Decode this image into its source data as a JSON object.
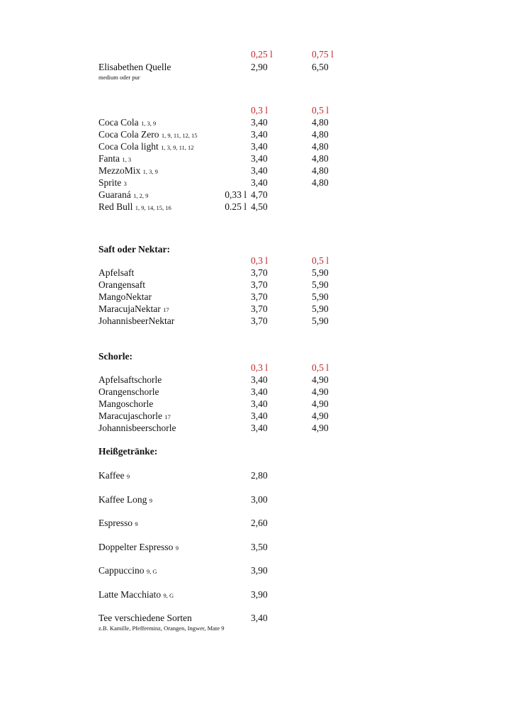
{
  "water": {
    "sizes": [
      "0,25 l",
      "0,75 l"
    ],
    "item": {
      "name": "Elisabethen Quelle",
      "note": "",
      "prices": [
        "2,90",
        "6,50"
      ],
      "subtitle": "medium oder pur"
    }
  },
  "soft_drinks": {
    "sizes": [
      "0,3 l",
      "0,5 l"
    ],
    "items": [
      {
        "name": "Coca Cola",
        "note": "1, 3, 9",
        "prices": [
          "3,40",
          "4,80"
        ]
      },
      {
        "name": "Coca Cola Zero",
        "note": "1, 9, 11, 12, 15",
        "prices": [
          "3,40",
          "4,80"
        ]
      },
      {
        "name": "Coca Cola light",
        "note": "1, 3, 9, 11, 12",
        "prices": [
          "3,40",
          "4,80"
        ]
      },
      {
        "name": "Fanta",
        "note": "1, 3",
        "prices": [
          "3,40",
          "4,80"
        ]
      },
      {
        "name": "MezzoMix",
        "note": "1, 3, 9",
        "prices": [
          "3,40",
          "4,80"
        ]
      },
      {
        "name": "Sprite",
        "note": "3",
        "prices": [
          "3,40",
          "4,80"
        ]
      },
      {
        "name": "Guaraná",
        "note": "1, 2, 9",
        "size": "0,33 l",
        "prices": [
          "4,70"
        ]
      },
      {
        "name": "Red Bull",
        "note": "1, 9, 14, 15, 16",
        "size": "0.25 l",
        "prices": [
          "4,50"
        ]
      }
    ]
  },
  "juice": {
    "title": "Saft oder Nektar:",
    "sizes": [
      "0,3 l",
      "0,5 l"
    ],
    "items": [
      {
        "name": "Apfelsaft",
        "note": "",
        "prices": [
          "3,70",
          "5,90"
        ]
      },
      {
        "name": "Orangensaft",
        "note": "",
        "prices": [
          "3,70",
          "5,90"
        ]
      },
      {
        "name": "MangoNektar",
        "note": "",
        "prices": [
          "3,70",
          "5,90"
        ]
      },
      {
        "name": "MaracujaNektar",
        "note": "17",
        "prices": [
          "3,70",
          "5,90"
        ]
      },
      {
        "name": "JohannisbeerNektar",
        "note": "",
        "prices": [
          "3,70",
          "5,90"
        ]
      }
    ]
  },
  "schorle": {
    "title": "Schorle:",
    "sizes": [
      "0,3 l",
      "0,5 l"
    ],
    "items": [
      {
        "name": "Apfelsaftschorle",
        "note": "",
        "prices": [
          "3,40",
          "4,90"
        ]
      },
      {
        "name": "Orangenschorle",
        "note": "",
        "prices": [
          "3,40",
          "4,90"
        ]
      },
      {
        "name": "Mangoschorle",
        "note": "",
        "prices": [
          "3,40",
          "4,90"
        ]
      },
      {
        "name": "Maracujaschorle",
        "note": "17",
        "prices": [
          "3,40",
          "4,90"
        ]
      },
      {
        "name": "Johannisbeerschorle",
        "note": "",
        "prices": [
          "3,40",
          "4,90"
        ]
      }
    ]
  },
  "hot": {
    "title": "Heißgetränke:",
    "items": [
      {
        "name": "Kaffee",
        "note": "9",
        "prices": [
          "2,80"
        ]
      },
      {
        "name": "Kaffee Long",
        "note": "9",
        "prices": [
          "3,00"
        ]
      },
      {
        "name": "Espresso",
        "note": "9",
        "prices": [
          "2,60"
        ]
      },
      {
        "name": "Doppelter Espresso",
        "note": "9",
        "prices": [
          "3,50"
        ]
      },
      {
        "name": "Cappuccino",
        "note": "9, G",
        "prices": [
          "3,90"
        ]
      },
      {
        "name": "Latte Macchiato",
        "note": "9, G",
        "prices": [
          "3,90"
        ]
      },
      {
        "name": "Tee verschiedene Sorten",
        "note": "",
        "prices": [
          "3,40"
        ],
        "subtitle": "z.B. Kamille, Pfefferminz, Orangen, Ingwer, Mate 9"
      }
    ]
  }
}
